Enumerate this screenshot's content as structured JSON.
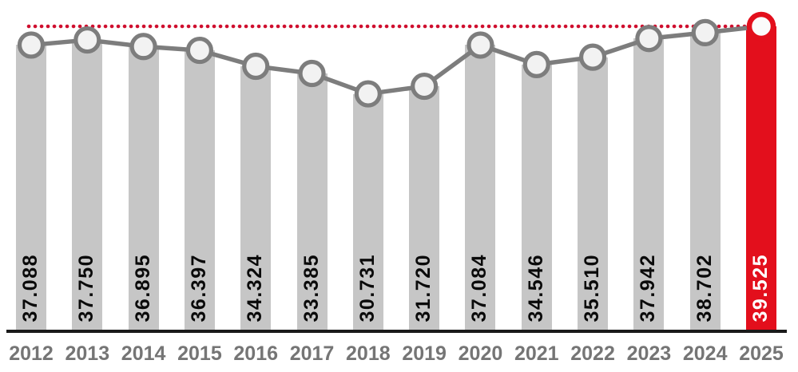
{
  "chart_data": {
    "type": "bar",
    "title": "",
    "xlabel": "",
    "ylabel": "",
    "categories": [
      "2012",
      "2013",
      "2014",
      "2015",
      "2016",
      "2017",
      "2018",
      "2019",
      "2020",
      "2021",
      "2022",
      "2023",
      "2024",
      "2025"
    ],
    "values": [
      37088,
      37750,
      36895,
      36397,
      34324,
      33385,
      30731,
      31720,
      37084,
      34546,
      35510,
      37942,
      38702,
      39525
    ],
    "value_labels": [
      "37.088",
      "37.750",
      "36.895",
      "36.397",
      "34.324",
      "33.385",
      "30.731",
      "31.720",
      "37.084",
      "34.546",
      "35.510",
      "37.942",
      "38.702",
      "39.525"
    ],
    "series": [
      {
        "name": "bars",
        "type": "bar",
        "values": [
          37088,
          37750,
          36895,
          36397,
          34324,
          33385,
          30731,
          31720,
          37084,
          34546,
          35510,
          37942,
          38702,
          39525
        ]
      },
      {
        "name": "trend-line-with-markers",
        "type": "line",
        "values": [
          37088,
          37750,
          36895,
          36397,
          34324,
          33385,
          30731,
          31720,
          37084,
          34546,
          35510,
          37942,
          38702,
          39525
        ]
      }
    ],
    "highlight_index": 13,
    "reference_line": {
      "style": "dotted",
      "value": 39525,
      "color": "#cf0f2e"
    },
    "ylim": [
      0,
      39525
    ],
    "grid": false,
    "legend": false,
    "colors": {
      "bar": "#c6c6c6",
      "highlight_bar": "#e30f1c",
      "line": "#7d7d7d",
      "marker_fill": "#f2f2f2",
      "marker_stroke": "#7d7d7d",
      "highlight_marker_fill": "#fbfbfb",
      "highlight_marker_stroke": "#e30f1c",
      "value_label": "#0a0a0a",
      "highlight_value_label": "#ffffff",
      "year_label": "#757575",
      "axis": "#1a1a1a",
      "background": "#ffffff"
    }
  }
}
